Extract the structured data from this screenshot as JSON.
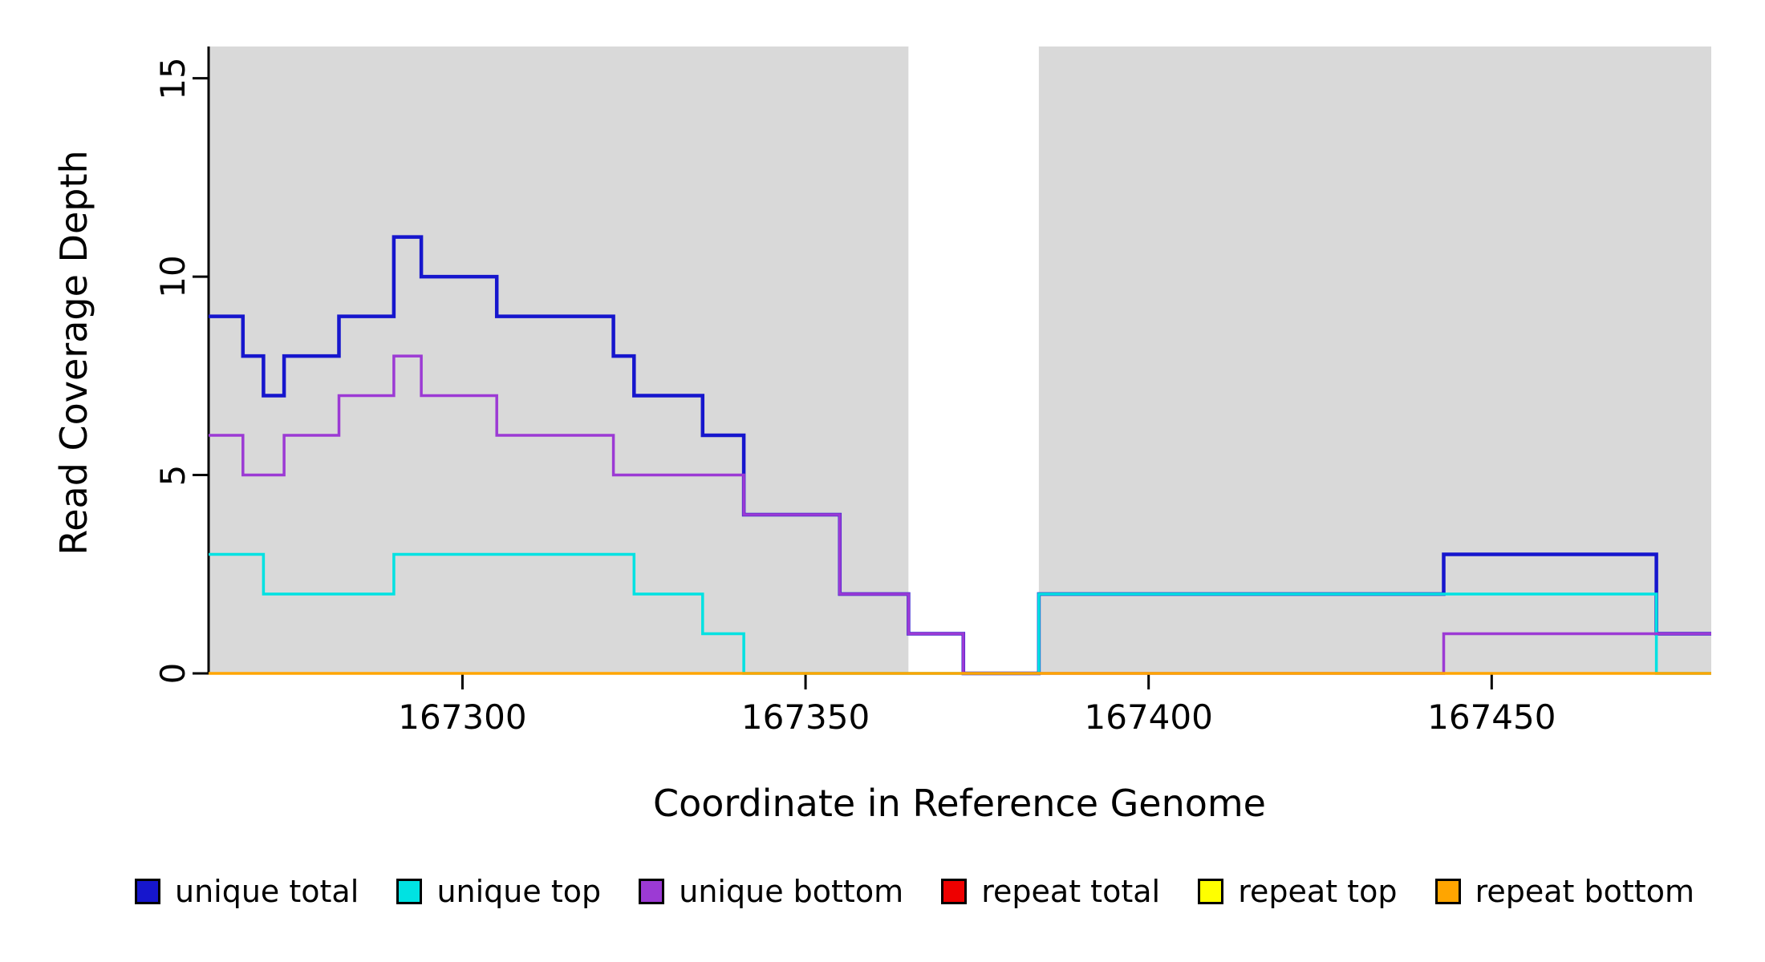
{
  "chart_data": {
    "type": "line",
    "step": true,
    "title": "",
    "xlabel": "Coordinate in Reference Genome",
    "ylabel": "Read Coverage Depth",
    "xlim": [
      167263,
      167482
    ],
    "ylim": [
      0,
      15.8
    ],
    "x_ticks": [
      167300,
      167350,
      167400,
      167450
    ],
    "y_ticks": [
      0,
      5,
      10,
      15
    ],
    "grid": false,
    "legend_position": "bottom",
    "plot_background": "#ffffff",
    "shaded_regions": [
      {
        "x0": 167263,
        "x1": 167365,
        "color": "#d9d9d9"
      },
      {
        "x0": 167384,
        "x1": 167482,
        "color": "#d9d9d9"
      }
    ],
    "series": [
      {
        "name": "unique total",
        "color": "#1616cd",
        "width": 4.5,
        "steps": [
          [
            167263,
            9
          ],
          [
            167268,
            8
          ],
          [
            167271,
            7
          ],
          [
            167274,
            8
          ],
          [
            167282,
            9
          ],
          [
            167290,
            11
          ],
          [
            167294,
            10
          ],
          [
            167305,
            9
          ],
          [
            167322,
            8
          ],
          [
            167325,
            7
          ],
          [
            167335,
            6
          ],
          [
            167341,
            4
          ],
          [
            167355,
            2
          ],
          [
            167365,
            1
          ],
          [
            167373,
            0
          ],
          [
            167384,
            2
          ],
          [
            167443,
            3
          ],
          [
            167474,
            1
          ]
        ]
      },
      {
        "name": "unique top",
        "color": "#00e2e2",
        "width": 3.5,
        "steps": [
          [
            167263,
            3
          ],
          [
            167271,
            2
          ],
          [
            167290,
            3
          ],
          [
            167325,
            2
          ],
          [
            167335,
            1
          ],
          [
            167341,
            0
          ],
          [
            167384,
            2
          ],
          [
            167474,
            0
          ]
        ]
      },
      {
        "name": "unique bottom",
        "color": "#9c3ad4",
        "width": 3.5,
        "steps": [
          [
            167263,
            6
          ],
          [
            167268,
            5
          ],
          [
            167274,
            6
          ],
          [
            167282,
            7
          ],
          [
            167290,
            8
          ],
          [
            167294,
            7
          ],
          [
            167305,
            6
          ],
          [
            167322,
            5
          ],
          [
            167341,
            4
          ],
          [
            167355,
            2
          ],
          [
            167365,
            1
          ],
          [
            167373,
            0
          ],
          [
            167443,
            1
          ]
        ]
      },
      {
        "name": "repeat total",
        "color": "#ee0000",
        "width": 3,
        "steps": [
          [
            167263,
            0
          ]
        ]
      },
      {
        "name": "repeat top",
        "color": "#ffff00",
        "width": 3,
        "steps": [
          [
            167263,
            0
          ]
        ]
      },
      {
        "name": "repeat bottom",
        "color": "#ffa500",
        "width": 3.5,
        "steps": [
          [
            167263,
            0
          ]
        ]
      }
    ]
  },
  "legend": {
    "items": [
      {
        "label": "unique total",
        "color": "#1616cd"
      },
      {
        "label": "unique top",
        "color": "#00e2e2"
      },
      {
        "label": "unique bottom",
        "color": "#9c3ad4"
      },
      {
        "label": "repeat total",
        "color": "#ee0000"
      },
      {
        "label": "repeat top",
        "color": "#ffff00"
      },
      {
        "label": "repeat bottom",
        "color": "#ffa500"
      }
    ]
  }
}
